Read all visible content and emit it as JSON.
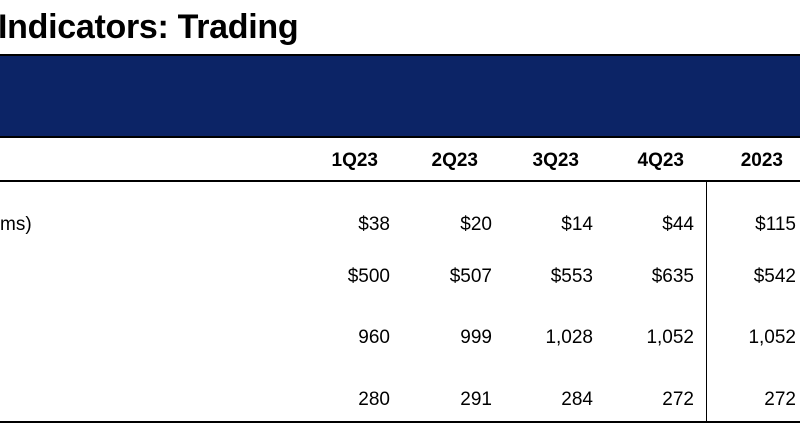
{
  "title": "Indicators: Trading",
  "columns": [
    "1Q23",
    "2Q23",
    "3Q23",
    "4Q23",
    "2023"
  ],
  "rows": [
    {
      "label": "ms)",
      "values": [
        "$38",
        "$20",
        "$14",
        "$44",
        "$115"
      ]
    },
    {
      "label": "",
      "values": [
        "$500",
        "$507",
        "$553",
        "$635",
        "$542"
      ]
    },
    {
      "label": "",
      "values": [
        "960",
        "999",
        "1,028",
        "1,052",
        "1,052"
      ]
    },
    {
      "label": "",
      "values": [
        "280",
        "291",
        "284",
        "272",
        "272"
      ]
    }
  ],
  "colors": {
    "banner": "#0c2466",
    "rules": "#000000",
    "text": "#000000"
  }
}
